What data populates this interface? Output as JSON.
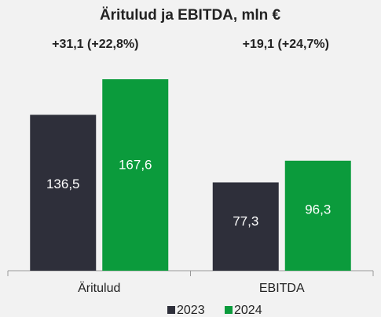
{
  "chart_data": {
    "type": "bar",
    "title": "Äritulud ja EBITDA, mln €",
    "annotations": [
      "+31,1 (+22,8%)",
      "+19,1 (+24,7%)"
    ],
    "categories": [
      "Äritulud",
      "EBITDA"
    ],
    "series": [
      {
        "name": "2023",
        "color": "#2e2f3a",
        "values": [
          136.5,
          77.3
        ],
        "value_labels": [
          "136,5",
          "77,3"
        ]
      },
      {
        "name": "2024",
        "color": "#0b9b3c",
        "values": [
          167.6,
          96.3
        ],
        "value_labels": [
          "167,6",
          "96,3"
        ]
      }
    ]
  }
}
